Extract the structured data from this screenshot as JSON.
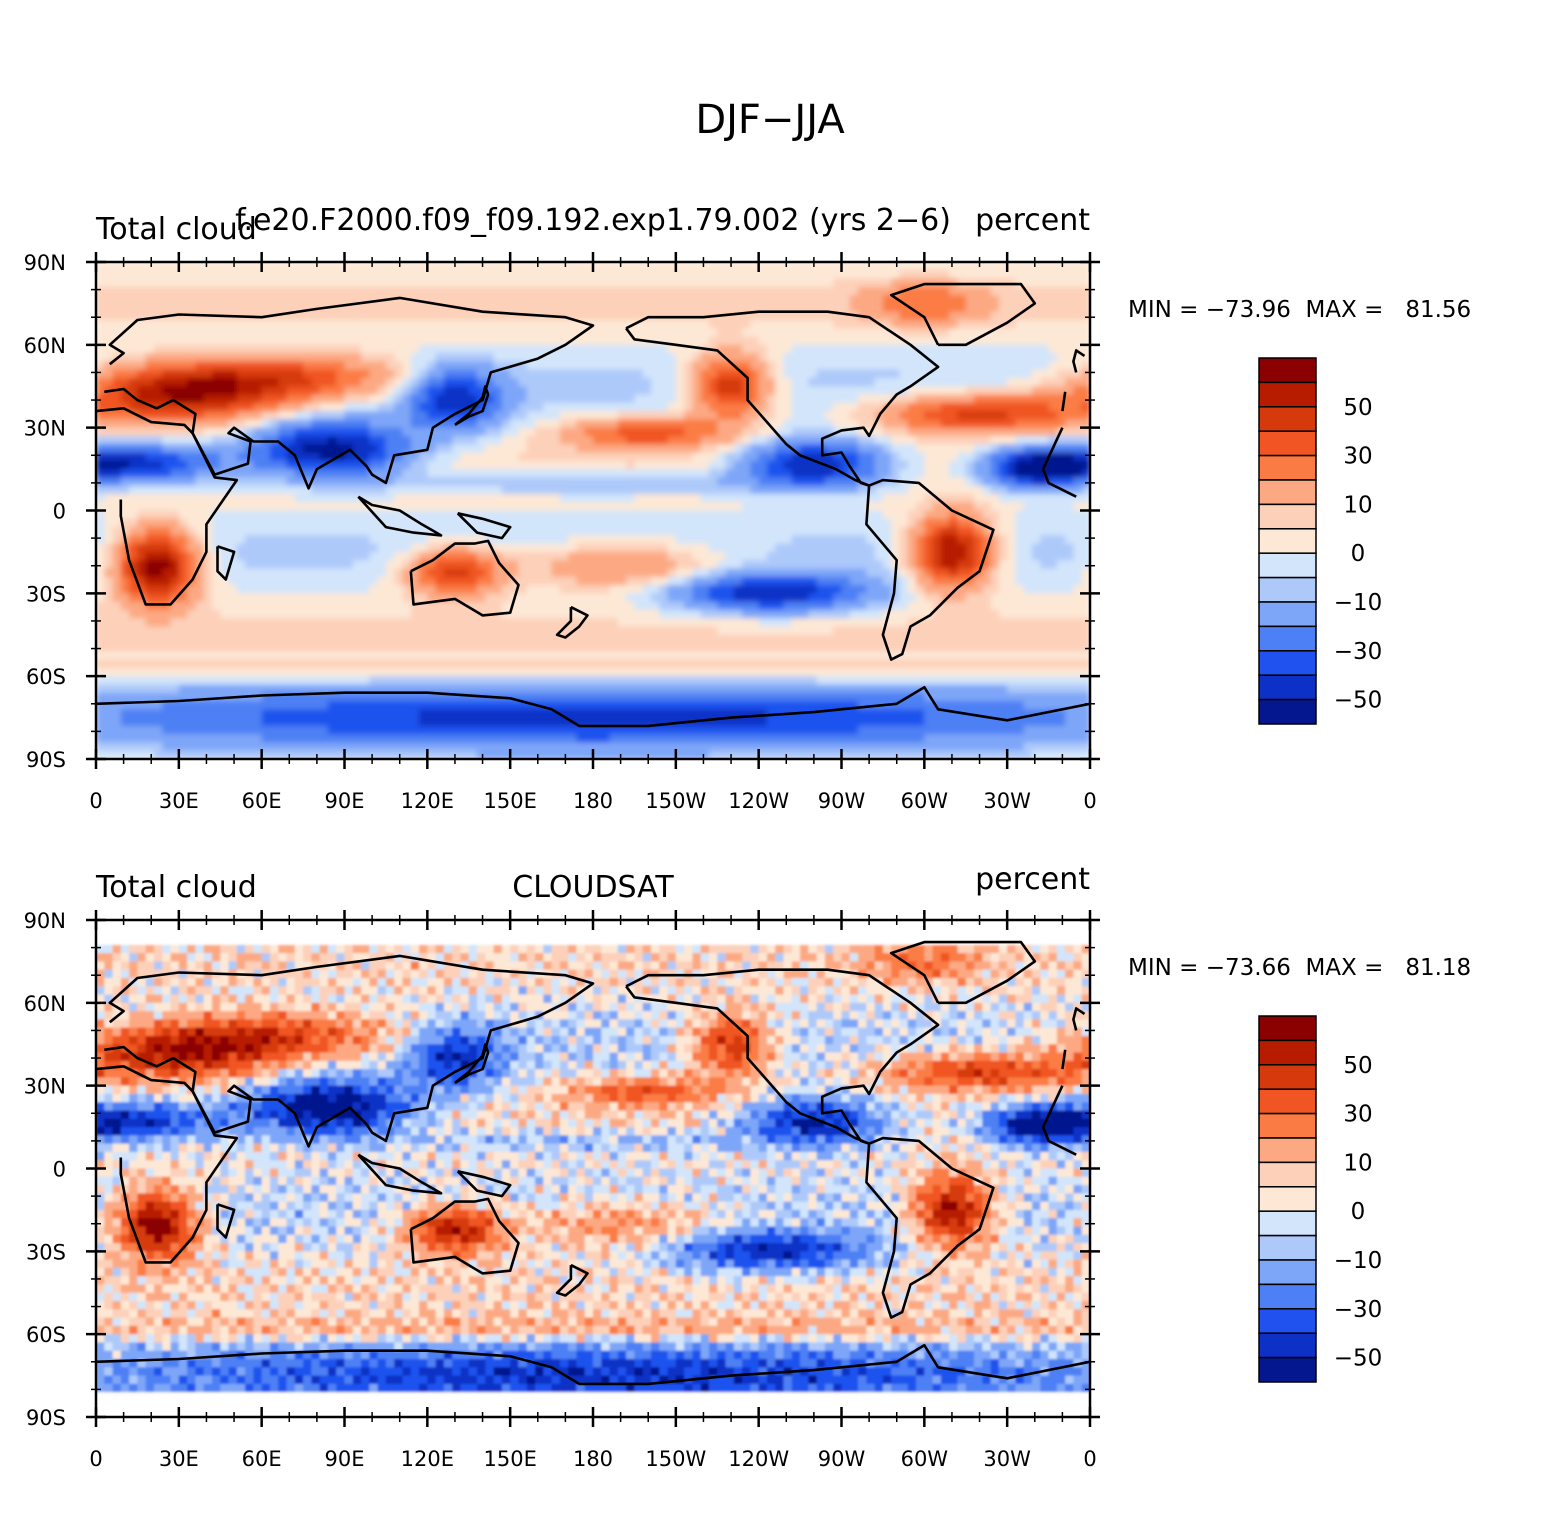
{
  "figure": {
    "title": "DJF−JJA"
  },
  "panels": [
    {
      "id": "model",
      "left_title": "Total cloud",
      "center_title": "f.e20.F2000.f09_f09.192.exp1.79.002 (yrs 2−6)",
      "right_title": "percent",
      "min_max_text": "MIN = −73.96  MAX =   81.56",
      "field_variant": "smooth",
      "data_coverage_lat": [
        -90,
        90
      ]
    },
    {
      "id": "cloudsat",
      "left_title": "Total cloud",
      "center_title": "CLOUDSAT",
      "right_title": "percent",
      "min_max_text": "MIN = −73.66  MAX =   81.18",
      "field_variant": "noisy",
      "data_coverage_lat": [
        -81,
        81
      ]
    }
  ],
  "axes": {
    "lat_ticks": [
      "90N",
      "60N",
      "30N",
      "0",
      "30S",
      "60S",
      "90S"
    ],
    "lon_ticks": [
      "0",
      "30E",
      "60E",
      "90E",
      "120E",
      "150E",
      "180",
      "150W",
      "120W",
      "90W",
      "60W",
      "30W",
      "0"
    ]
  },
  "colorbar": {
    "labels": [
      "50",
      "30",
      "10",
      "0",
      "−10",
      "−30",
      "−50"
    ],
    "colors_top_to_bottom": [
      "#8b0000",
      "#b71c00",
      "#d63a0c",
      "#f05523",
      "#fb7b45",
      "#fca983",
      "#fdd0b9",
      "#fde8d6",
      "#d2e5fb",
      "#adc9fa",
      "#7ea6f8",
      "#4d80f4",
      "#1f52ee",
      "#0d30c6",
      "#05178f"
    ]
  },
  "chart_data": [
    {
      "type": "heatmap",
      "title": "DJF−JJA",
      "panel": "Total cloud — f.e20.F2000.f09_f09.192.exp1.79.002 (yrs 2−6)",
      "units": "percent",
      "x_axis": "longitude 0 → 360 (0, 30E ... 30W, 0)",
      "y_axis": "latitude 90S → 90N",
      "min": -73.96,
      "max": 81.56,
      "contour_levels": [
        -60,
        -50,
        -40,
        -30,
        -20,
        -10,
        -5,
        0,
        5,
        10,
        20,
        30,
        40,
        50,
        60
      ],
      "features": [
        {
          "region": "North Africa / Europe (20-45N, 0-60E)",
          "value": 55
        },
        {
          "region": "Southern Africa (15-30S, 15-35E)",
          "value": 60
        },
        {
          "region": "Sahel (10-20N, 0-50E)",
          "value": -50
        },
        {
          "region": "India / Bay of Bengal (15-30N, 60-95E)",
          "value": -55
        },
        {
          "region": "Brazil (5-25S, 40-60W)",
          "value": 55
        },
        {
          "region": "Central America (10-25N, 80-115W)",
          "value": -50
        },
        {
          "region": "South Pacific (25-35S, 90-130W)",
          "value": -45
        },
        {
          "region": "North Atlantic (30-40N, 30-60W)",
          "value": 45
        },
        {
          "region": "Antarctic coast (65-85S)",
          "value": -30
        }
      ]
    },
    {
      "type": "heatmap",
      "title": "DJF−JJA",
      "panel": "Total cloud — CLOUDSAT",
      "units": "percent",
      "x_axis": "longitude 0 → 360 (0, 30E ... 30W, 0)",
      "y_axis": "latitude 81S → 81N",
      "min": -73.66,
      "max": 81.18,
      "contour_levels": [
        -60,
        -50,
        -40,
        -30,
        -20,
        -10,
        -5,
        0,
        5,
        10,
        20,
        30,
        40,
        50,
        60
      ],
      "features": [
        {
          "region": "North Africa / Europe (20-45N, 0-60E)",
          "value": 40
        },
        {
          "region": "Southern Africa (15-30S, 15-35E)",
          "value": 65
        },
        {
          "region": "Sahel (10-20N, 0-50E)",
          "value": -45
        },
        {
          "region": "India / Bay of Bengal (15-30N, 60-95E)",
          "value": -65
        },
        {
          "region": "Brazil (5-25S, 40-60W)",
          "value": 60
        },
        {
          "region": "Northern Australia (15-30S, 120-145E)",
          "value": 55
        },
        {
          "region": "Central America (10-25N, 80-115W)",
          "value": -45
        },
        {
          "region": "Southern Ocean (55-65S)",
          "value": 15
        }
      ]
    }
  ]
}
